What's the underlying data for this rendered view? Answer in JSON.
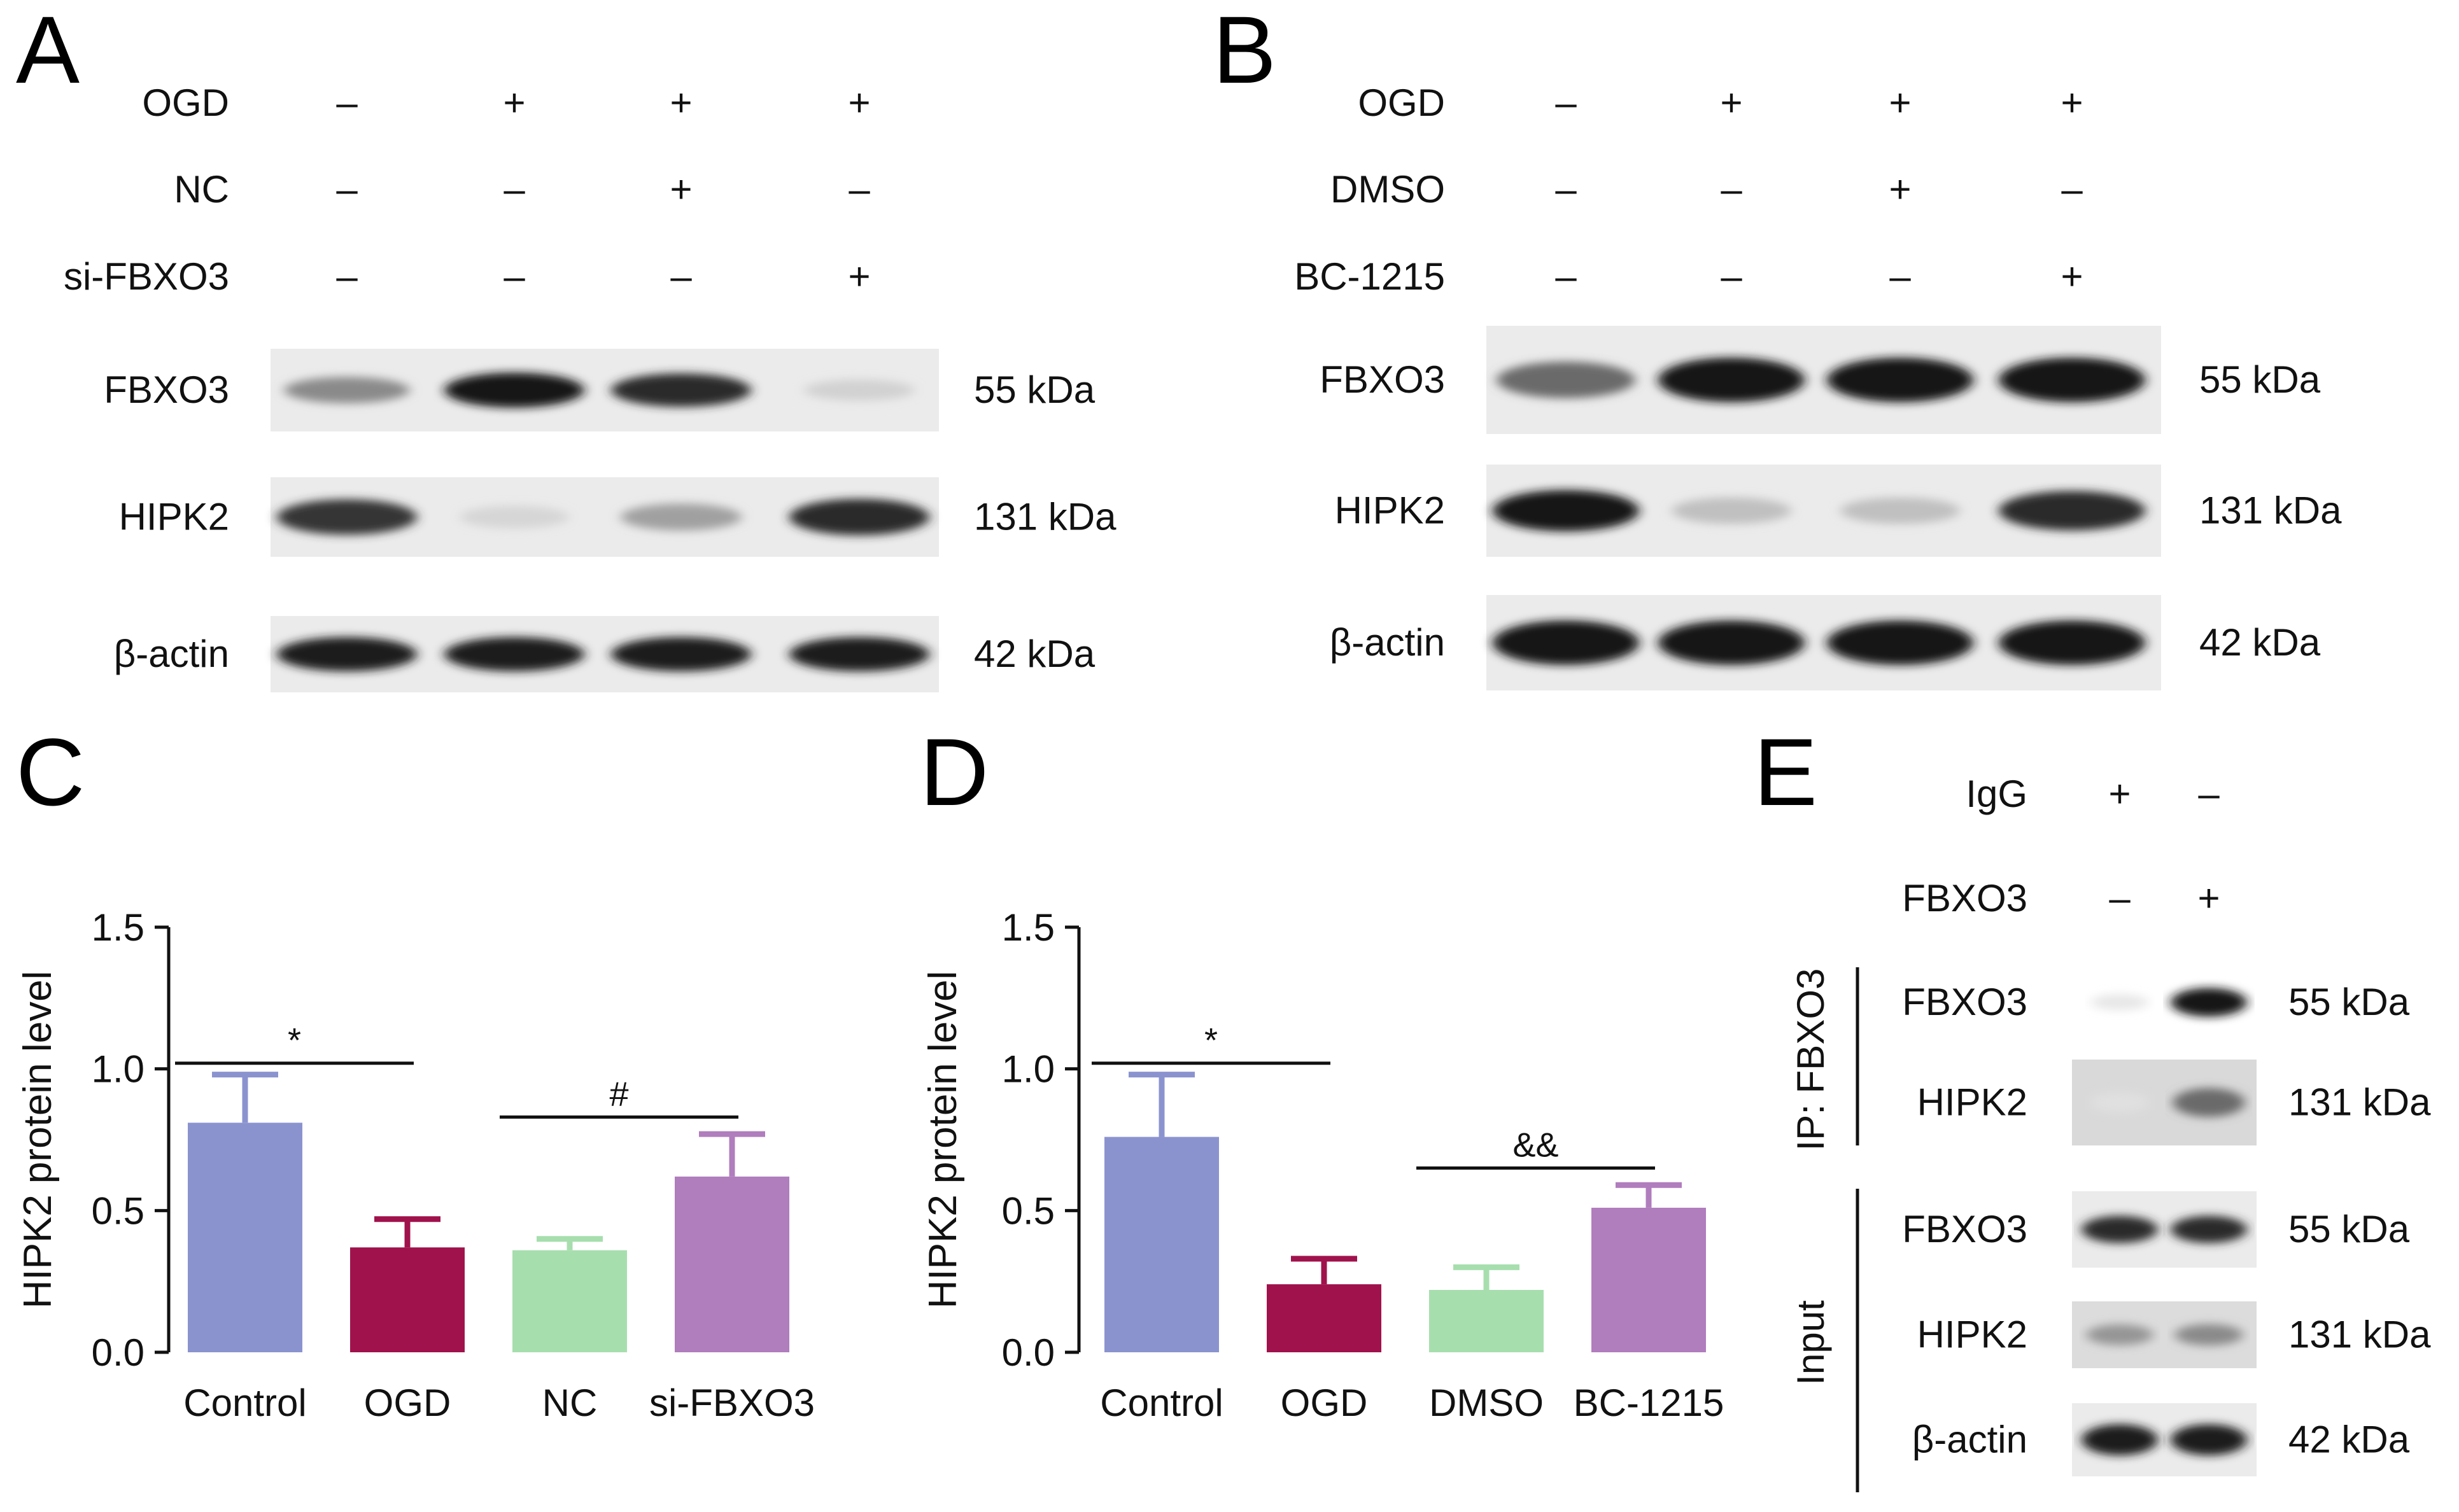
{
  "panels": {
    "A": {
      "letter": "A",
      "conditions": [
        {
          "label": "OGD",
          "signs": [
            "–",
            "+",
            "+",
            "+"
          ]
        },
        {
          "label": "NC",
          "signs": [
            "–",
            "–",
            "+",
            "–"
          ]
        },
        {
          "label": "si-FBXO3",
          "signs": [
            "–",
            "–",
            "–",
            "+"
          ]
        }
      ],
      "blots": [
        {
          "protein": "FBXO3",
          "size": "55 kDa",
          "intensity": [
            0.45,
            1.0,
            0.9,
            0.12
          ]
        },
        {
          "protein": "HIPK2",
          "size": "131 kDa",
          "intensity": [
            0.85,
            0.1,
            0.35,
            0.9
          ]
        },
        {
          "protein": "β-actin",
          "size": "42 kDa",
          "intensity": [
            0.95,
            0.95,
            0.95,
            0.95
          ]
        }
      ]
    },
    "B": {
      "letter": "B",
      "conditions": [
        {
          "label": "OGD",
          "signs": [
            "–",
            "+",
            "+",
            "+"
          ]
        },
        {
          "label": "DMSO",
          "signs": [
            "–",
            "–",
            "+",
            "–"
          ]
        },
        {
          "label": "BC-1215",
          "signs": [
            "–",
            "–",
            "–",
            "+"
          ]
        }
      ],
      "blots": [
        {
          "protein": "FBXO3",
          "size": "55 kDa",
          "intensity": [
            0.6,
            1.0,
            1.0,
            1.0
          ]
        },
        {
          "protein": "HIPK2",
          "size": "131 kDa",
          "intensity": [
            1.0,
            0.2,
            0.2,
            0.9
          ]
        },
        {
          "protein": "β-actin",
          "size": "42 kDa",
          "intensity": [
            1.0,
            1.0,
            1.0,
            1.0
          ]
        }
      ]
    },
    "E": {
      "letter": "E",
      "conditions": [
        {
          "label": "IgG",
          "signs": [
            "+",
            "–"
          ]
        },
        {
          "label": "FBXO3",
          "signs": [
            "–",
            "+"
          ]
        }
      ],
      "group_labels": {
        "ip": "IP: FBXO3",
        "input": "Input"
      },
      "ip_blots": [
        {
          "protein": "FBXO3",
          "size": "55 kDa",
          "intensity": [
            0.02,
            1.0
          ]
        },
        {
          "protein": "HIPK2",
          "size": "131 kDa",
          "intensity": [
            0.05,
            0.6
          ]
        }
      ],
      "input_blots": [
        {
          "protein": "FBXO3",
          "size": "55 kDa",
          "intensity": [
            0.9,
            0.9
          ]
        },
        {
          "protein": "HIPK2",
          "size": "131 kDa",
          "intensity": [
            0.4,
            0.45
          ]
        },
        {
          "protein": "β-actin",
          "size": "42 kDa",
          "intensity": [
            0.95,
            0.95
          ]
        }
      ]
    }
  },
  "chart_data": [
    {
      "panel": "C",
      "type": "bar",
      "categories": [
        "Control",
        "OGD",
        "NC",
        "si-FBXO3"
      ],
      "values": [
        0.81,
        0.37,
        0.36,
        0.62
      ],
      "errors": [
        0.17,
        0.1,
        0.04,
        0.15
      ],
      "colors": [
        "#8b93cf",
        "#a0124c",
        "#a7deae",
        "#b07dbd"
      ],
      "ylabel": "HIPK2 protein level",
      "ylim": [
        0,
        1.5
      ],
      "yticks": [
        "0.0",
        "0.5",
        "1.0",
        "1.5"
      ],
      "significance": [
        {
          "from": 0,
          "to": 1,
          "y": 1.02,
          "label": "*"
        },
        {
          "from": 2,
          "to": 3,
          "y": 0.83,
          "label": "#"
        }
      ]
    },
    {
      "panel": "D",
      "type": "bar",
      "categories": [
        "Control",
        "OGD",
        "DMSO",
        "BC-1215"
      ],
      "values": [
        0.76,
        0.24,
        0.22,
        0.51
      ],
      "errors": [
        0.22,
        0.09,
        0.08,
        0.08
      ],
      "colors": [
        "#8b93cf",
        "#a0124c",
        "#a7deae",
        "#b07dbd"
      ],
      "ylabel": "HIPK2 protein level",
      "ylim": [
        0,
        1.5
      ],
      "yticks": [
        "0.0",
        "0.5",
        "1.0",
        "1.5"
      ],
      "significance": [
        {
          "from": 0,
          "to": 1,
          "y": 1.02,
          "label": "*"
        },
        {
          "from": 2,
          "to": 3,
          "y": 0.65,
          "label": "&&"
        }
      ]
    }
  ]
}
